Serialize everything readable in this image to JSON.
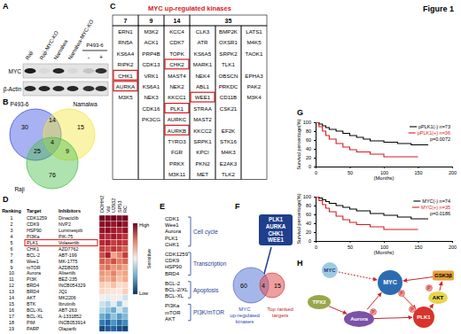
{
  "figure_title": "Figure 1",
  "panel_labels": [
    "A",
    "B",
    "C",
    "D",
    "E",
    "F",
    "G",
    "H"
  ],
  "western_blot": {
    "lanes": [
      "Raji",
      "Raji-MYC-KO",
      "Namalwa",
      "Namalwa-MYC-KO"
    ],
    "group": {
      "label": "P493-6",
      "lanes": [
        "-",
        "+"
      ]
    },
    "rows": [
      {
        "label": "MYC",
        "intensity": [
          0.95,
          0.05,
          0.9,
          0.05,
          0.15,
          0.85
        ]
      },
      {
        "label": "β-Actin",
        "intensity": [
          0.9,
          0.9,
          0.9,
          0.9,
          0.85,
          0.85
        ]
      }
    ]
  },
  "venn3": {
    "sets": [
      "P493-6",
      "Namalwa",
      "Raji"
    ],
    "colors": [
      "#3f51e0",
      "#f2e641",
      "#4cbf4c"
    ],
    "regions": {
      "a": 30,
      "ab": 14,
      "b": 15,
      "abc": 4,
      "ac": 25,
      "bc": 9,
      "c": 76
    }
  },
  "kinase_table": {
    "title": "MYC up-regulated kinases",
    "groups": [
      {
        "header": 7,
        "columns": [
          [
            "ERN1",
            "RN5A",
            "KS6A4",
            "RIPK2",
            "CHK1",
            "AURKA",
            "M3K5"
          ]
        ]
      },
      {
        "header": 9,
        "columns": [
          [
            "M3K2",
            "ACK1",
            "PRP4B",
            "CDK13",
            "VRK1",
            "KS6A1",
            "NEK3",
            "CDK16",
            "PK3CG"
          ]
        ]
      },
      {
        "header": 14,
        "columns": [
          [
            "KCC4",
            "CDK7",
            "TOPK",
            "CHK2",
            "MAST4",
            "NEK2",
            "KKCC1",
            "PLK1",
            "AURKC",
            "AURKB",
            "TYRO3",
            "FGR",
            "PRKX",
            "M3K11"
          ]
        ]
      },
      {
        "header": 35,
        "columns": [
          [
            "CLK3",
            "ATR",
            "KS6A5",
            "MARK1",
            "NEK4",
            "ABL1",
            "WEE1",
            "STRAA",
            "MAST2",
            "KKCC2",
            "SRPK1",
            "KPCI",
            "PKN2",
            "MET"
          ],
          [
            "BMP2K",
            "OXSR1",
            "SRPK2",
            "TLK1",
            "OBSCN",
            "PRKDC",
            "CD11B",
            "CSK21",
            null,
            "EF2K",
            "STK16",
            "M4K3",
            "E2AK3",
            "TLK2"
          ],
          [
            "LATS1",
            "M4K5",
            "TAOK1",
            null,
            "EPHA3",
            "PAK2",
            "M3K4",
            null,
            null,
            null,
            null,
            null,
            null,
            null
          ]
        ]
      }
    ],
    "highlighted": [
      "CHK1",
      "AURKA",
      "CHK2",
      "PLK1",
      "AURKB",
      "WEE1"
    ]
  },
  "drug_table": {
    "headers": [
      "Ranking",
      "Target",
      "Inhibitors"
    ],
    "rows": [
      [
        1,
        "CDK1259",
        "Dinaciclib"
      ],
      [
        2,
        "CDK9",
        "NVP2"
      ],
      [
        3,
        "HSP90",
        "Luminespib"
      ],
      [
        4,
        "PI3Ka",
        "PIK-75"
      ],
      [
        5,
        "PLK1",
        "Volasertib"
      ],
      [
        6,
        "CHK1",
        "AZD7762"
      ],
      [
        7,
        "BCL-2",
        "ABT-199"
      ],
      [
        8,
        "Wee1",
        "MK-1775"
      ],
      [
        9,
        "mTOR",
        "AZD8055"
      ],
      [
        10,
        "Aurora",
        "Alisertib"
      ],
      [
        11,
        "PI3K",
        "BEZ-235"
      ],
      [
        12,
        "BRD4",
        "INCB054329"
      ],
      [
        13,
        "BRD4",
        "JQ1"
      ],
      [
        14,
        "AKT",
        "MK2206"
      ],
      [
        15,
        "BTK",
        "Ibrutinib"
      ],
      [
        16,
        "BCL-XL",
        "ABT-263"
      ],
      [
        17,
        "BCL-XL",
        "A-1331852"
      ],
      [
        18,
        "PIM",
        "INCB053914"
      ],
      [
        19,
        "PARP",
        "Olaparib"
      ]
    ],
    "highlighted": "PLK1",
    "cell_lines": [
      "DOHH2",
      "Val",
      "U2932",
      "SP53",
      "RC"
    ],
    "sensitivity": [
      [
        0.98,
        0.97,
        0.99,
        0.96,
        0.98
      ],
      [
        0.95,
        0.96,
        0.93,
        0.97,
        0.94
      ],
      [
        0.93,
        0.95,
        0.92,
        0.9,
        0.94
      ],
      [
        0.9,
        0.88,
        0.92,
        0.9,
        0.87
      ],
      [
        0.88,
        0.9,
        0.85,
        0.87,
        0.86
      ],
      [
        0.85,
        0.83,
        0.86,
        0.84,
        0.8
      ],
      [
        0.82,
        0.9,
        0.7,
        0.75,
        0.85
      ],
      [
        0.8,
        0.78,
        0.82,
        0.76,
        0.79
      ],
      [
        0.75,
        0.78,
        0.72,
        0.74,
        0.7
      ],
      [
        0.72,
        0.7,
        0.75,
        0.68,
        0.7
      ],
      [
        0.7,
        0.68,
        0.72,
        0.65,
        0.69
      ],
      [
        0.62,
        0.6,
        0.65,
        0.58,
        0.6
      ],
      [
        0.6,
        0.58,
        0.56,
        0.55,
        0.62
      ],
      [
        0.5,
        0.45,
        0.52,
        0.48,
        0.4
      ],
      [
        0.4,
        0.35,
        0.45,
        0.3,
        0.5
      ],
      [
        0.35,
        0.3,
        0.25,
        0.4,
        0.3
      ],
      [
        0.25,
        0.2,
        0.3,
        0.22,
        0.28
      ],
      [
        0.15,
        0.1,
        0.2,
        0.12,
        0.18
      ],
      [
        0.05,
        0.08,
        0.1,
        0.06,
        0.04
      ]
    ],
    "colorbar": {
      "range": [
        0,
        1
      ],
      "high": "High",
      "low": "Low",
      "title": "Sensitive"
    }
  },
  "target_groups": [
    {
      "name": "Cell cycle",
      "items": [
        "CDK1",
        "Wee1",
        "Aurora",
        "PLK1",
        "CHK1"
      ]
    },
    {
      "name": "Transcription",
      "items": [
        "CDK1259",
        "CDK9",
        "HSP90",
        "BRD4"
      ]
    },
    {
      "name": "Apoptosis",
      "items": [
        "BCL-2",
        "BCL-2/XL",
        "BCL-XL"
      ]
    },
    {
      "name": "PI3K/mTOR",
      "items": [
        "PI3Ka",
        "mTOR",
        "AKT"
      ]
    }
  ],
  "venn2": {
    "left": {
      "label_lines": [
        "MYC",
        "up-regulated",
        "kinases"
      ],
      "value": 60
    },
    "right": {
      "label_lines": [
        "Top ranked",
        "targets"
      ],
      "value": 15
    },
    "overlap": 4,
    "overlap_items": [
      "PLK1",
      "AURKA",
      "CHK1",
      "WEE1"
    ]
  },
  "chart_data": [
    {
      "type": "step",
      "xlabel": "(Months)",
      "ylabel": "Survival percentage(%)",
      "xlim": [
        0,
        200
      ],
      "xticks": [
        0,
        50,
        100,
        150,
        200
      ],
      "ylim": [
        0,
        100
      ],
      "yticks": [
        0,
        20,
        40,
        60,
        80,
        100
      ],
      "legend": "upper right",
      "annotations": [
        "p=0.0072"
      ],
      "series": [
        {
          "name": "pPLK1(-) n=73",
          "color": "#000000",
          "x": [
            0,
            5,
            10,
            15,
            20,
            30,
            40,
            50,
            60,
            70,
            80,
            100,
            120,
            140,
            165
          ],
          "values": [
            100,
            96,
            92,
            88,
            84,
            80,
            75,
            70,
            66,
            62,
            58,
            55,
            52,
            49,
            49
          ]
        },
        {
          "name": "pPLK1(+) n=36",
          "color": "#d7191c",
          "x": [
            0,
            5,
            10,
            15,
            20,
            30,
            40,
            50,
            60,
            80,
            100,
            150
          ],
          "values": [
            100,
            90,
            80,
            70,
            62,
            52,
            44,
            38,
            33,
            28,
            22,
            22
          ]
        }
      ]
    },
    {
      "type": "step",
      "xlabel": "(Months)",
      "ylabel": "Survival percentage(%)",
      "xlim": [
        0,
        200
      ],
      "xticks": [
        0,
        50,
        100,
        150,
        200
      ],
      "ylim": [
        0,
        100
      ],
      "yticks": [
        0,
        20,
        40,
        60,
        80,
        100
      ],
      "legend": "upper right",
      "annotations": [
        "p=0.0186"
      ],
      "series": [
        {
          "name": "MYC(-) n=74",
          "color": "#000000",
          "x": [
            0,
            5,
            10,
            15,
            20,
            30,
            40,
            50,
            60,
            80,
            100,
            120,
            140,
            165
          ],
          "values": [
            100,
            97,
            93,
            89,
            85,
            80,
            76,
            72,
            68,
            62,
            58,
            54,
            50,
            50
          ]
        },
        {
          "name": "MYC(+) n=35",
          "color": "#d7191c",
          "x": [
            0,
            5,
            10,
            15,
            20,
            30,
            40,
            50,
            60,
            80,
            100,
            150
          ],
          "values": [
            100,
            91,
            82,
            74,
            66,
            56,
            48,
            42,
            37,
            32,
            26,
            26
          ]
        }
      ]
    }
  ],
  "pathway": {
    "nodes": [
      "MYC",
      "MYC",
      "TPX2",
      "Aurora",
      "PLK1",
      "AKT",
      "GSK3β"
    ],
    "phospho": "P"
  }
}
